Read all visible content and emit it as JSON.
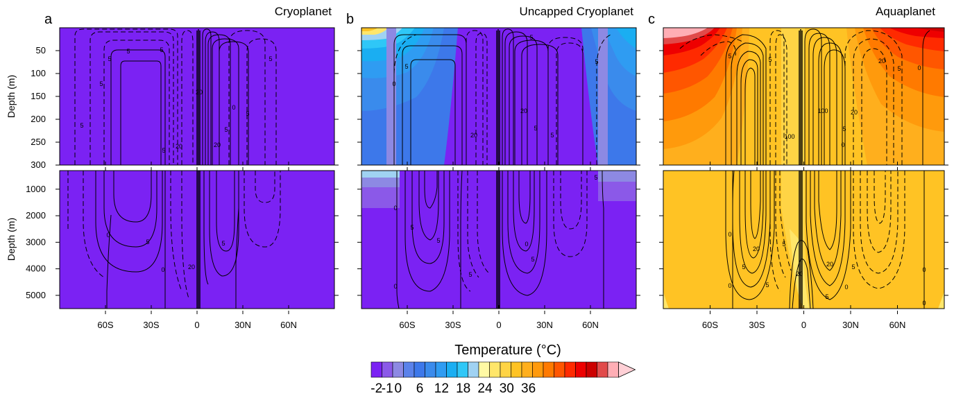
{
  "chart_data": [
    {
      "type": "heatmap",
      "panel_letter": "a",
      "title": "Cryoplanet",
      "ylabel": "Depth (m)",
      "y_upper_ticks": [
        "50",
        "100",
        "150",
        "200",
        "250",
        "300"
      ],
      "y_lower_ticks": [
        "1000",
        "2000",
        "3000",
        "4000",
        "5000"
      ],
      "x_ticks": [
        "60S",
        "30S",
        "0",
        "30N",
        "60N"
      ],
      "xlim": [
        -90,
        90
      ],
      "y_upper_lim": [
        0,
        300
      ],
      "y_lower_lim": [
        300,
        5500
      ],
      "temperature_field": "uniform near freezing (about -2 °C) at all latitudes and depths",
      "contour_labels": [
        "5",
        "5",
        "5",
        "5",
        "5",
        "5",
        "5",
        "20",
        "20",
        "20",
        "5",
        "5",
        "0",
        "0",
        "20",
        "5",
        "0",
        "5"
      ]
    },
    {
      "type": "heatmap",
      "panel_letter": "b",
      "title": "Uncapped Cryoplanet",
      "ylabel": "",
      "x_ticks": [
        "60S",
        "30S",
        "0",
        "30N",
        "60N"
      ],
      "xlim": [
        -90,
        90
      ],
      "temperature_field": "about -2 °C in the tropics and deep ocean; 0–12 °C in upper ocean poleward of 50°, warmest (≈18 °C) near the surface at high southern latitudes",
      "contour_labels": [
        "5",
        "0",
        "5",
        "20",
        "20",
        "5",
        "5",
        "5",
        "5",
        "0",
        "5",
        "5",
        "5",
        "5",
        "0",
        "0"
      ]
    },
    {
      "type": "heatmap",
      "panel_letter": "c",
      "title": "Aquaplanet",
      "ylabel": "",
      "x_ticks": [
        "60S",
        "30S",
        "0",
        "30N",
        "60N"
      ],
      "xlim": [
        -90,
        90
      ],
      "temperature_field": "≈20 °C throughout the deep ocean; 22–36 °C in the upper 300 m at high latitudes, ≈38 °C near the surface at high southern latitudes",
      "contour_labels": [
        "5",
        "5",
        "20",
        "5",
        "100",
        "100",
        "20",
        "5",
        "0",
        "0",
        "20",
        "5",
        "20",
        "5",
        "5",
        "20",
        "5",
        "5",
        "0",
        "0",
        "0",
        "0",
        "0"
      ]
    }
  ],
  "colorbar": {
    "title": "Temperature (°C)",
    "tick_labels": [
      "-2",
      "-1",
      "0",
      "6",
      "12",
      "18",
      "24",
      "30",
      "36"
    ],
    "levels": [
      -2,
      -1,
      0,
      3,
      6,
      9,
      12,
      15,
      18,
      19,
      20,
      22,
      24,
      26,
      28,
      30,
      32,
      34,
      36,
      38
    ],
    "colors": [
      "#7b22f3",
      "#8b59e8",
      "#8d89e3",
      "#5b82ea",
      "#3d78ea",
      "#3a8bec",
      "#2f9cf2",
      "#1aaef2",
      "#2fc7f7",
      "#a0d2f2",
      "#fff9a4",
      "#ffe66a",
      "#ffd445",
      "#ffc324",
      "#ffaf1d",
      "#ff9a0c",
      "#ff7a00",
      "#ff5600",
      "#ff2a00",
      "#ee0000",
      "#cc0000",
      "#e14a4a",
      "#ffaeb5"
    ]
  }
}
